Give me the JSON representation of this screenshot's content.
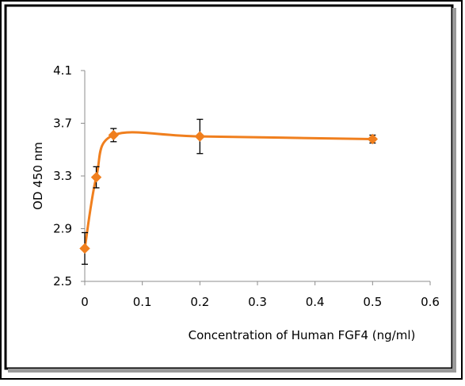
{
  "chart_data": {
    "type": "line",
    "title": "",
    "xlabel": "Concentration of Human FGF4 (ng/ml)",
    "ylabel": "OD 450 nm",
    "xlim": [
      0,
      0.6
    ],
    "ylim": [
      2.5,
      4.1
    ],
    "x_ticks": [
      0,
      0.1,
      0.2,
      0.3,
      0.4,
      0.5,
      0.6
    ],
    "x_tick_labels": [
      "0",
      "0.1",
      "0.2",
      "0.3",
      "0.4",
      "0.5",
      "0.6"
    ],
    "y_ticks": [
      2.5,
      2.9,
      3.3,
      3.7,
      4.1
    ],
    "y_tick_labels": [
      "2.5",
      "2.9",
      "3.3",
      "3.7",
      "4.1"
    ],
    "grid": false,
    "legend": "none",
    "marker": "diamond",
    "smooth": true,
    "series": [
      {
        "color": "#f07f1e",
        "x": [
          0,
          0.02,
          0.05,
          0.2,
          0.5
        ],
        "y": [
          2.75,
          3.29,
          3.61,
          3.6,
          3.58
        ],
        "error": [
          0.12,
          0.08,
          0.05,
          0.13,
          0.03
        ]
      }
    ]
  }
}
